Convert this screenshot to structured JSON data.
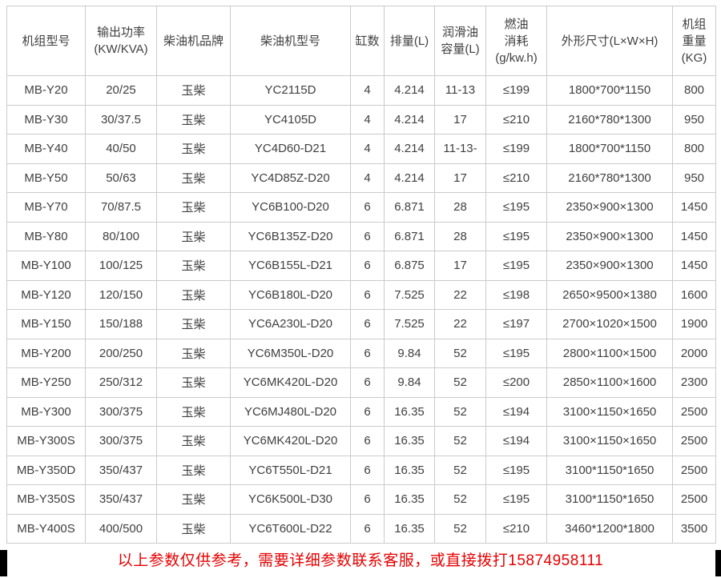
{
  "table": {
    "border_color": "#cbcbcb",
    "text_color": "#404040",
    "column_headers": [
      {
        "key": "model",
        "lines": [
          "机组型号"
        ]
      },
      {
        "key": "power",
        "lines": [
          "输出功率",
          "(KW/KVA)"
        ]
      },
      {
        "key": "brand",
        "lines": [
          "柴油机品牌"
        ]
      },
      {
        "key": "engine",
        "lines": [
          "柴油机型号"
        ]
      },
      {
        "key": "cylinders",
        "lines": [
          "缸数"
        ]
      },
      {
        "key": "displacement",
        "lines": [
          "排量(L)"
        ]
      },
      {
        "key": "lube",
        "lines": [
          "润滑油",
          "容量(L)"
        ]
      },
      {
        "key": "fuel",
        "lines": [
          "燃油",
          "消耗",
          "(g/kw.h)"
        ]
      },
      {
        "key": "dimensions",
        "lines": [
          "外形尺寸(L×W×H)"
        ]
      },
      {
        "key": "weight",
        "lines": [
          "机组",
          "重量",
          "(KG)"
        ]
      }
    ],
    "rows": [
      [
        "MB-Y20",
        "20/25",
        "玉柴",
        "YC2115D",
        "4",
        "4.214",
        "11-13",
        "≤199",
        "1800*700*1150",
        "800"
      ],
      [
        "MB-Y30",
        "30/37.5",
        "玉柴",
        "YC4105D",
        "4",
        "4.214",
        "17",
        "≤210",
        "2160*780*1300",
        "950"
      ],
      [
        "MB-Y40",
        "40/50",
        "玉柴",
        "YC4D60-D21",
        "4",
        "4.214",
        "11-13-",
        "≤199",
        "1800*700*1150",
        "800"
      ],
      [
        "MB-Y50",
        "50/63",
        "玉柴",
        "YC4D85Z-D20",
        "4",
        "4.214",
        "17",
        "≤210",
        "2160*780*1300",
        "950"
      ],
      [
        "MB-Y70",
        "70/87.5",
        "玉柴",
        "YC6B100-D20",
        "6",
        "6.871",
        "28",
        "≤195",
        "2350×900×1300",
        "1450"
      ],
      [
        "MB-Y80",
        "80/100",
        "玉柴",
        "YC6B135Z-D20",
        "6",
        "6.871",
        "28",
        "≤195",
        "2350×900×1300",
        "1450"
      ],
      [
        "MB-Y100",
        "100/125",
        "玉柴",
        "YC6B155L-D21",
        "6",
        "6.875",
        "17",
        "≤195",
        "2350×900×1300",
        "1450"
      ],
      [
        "MB-Y120",
        "120/150",
        "玉柴",
        "YC6B180L-D20",
        "6",
        "7.525",
        "22",
        "≤198",
        "2650×9500×1380",
        "1600"
      ],
      [
        "MB-Y150",
        "150/188",
        "玉柴",
        "YC6A230L-D20",
        "6",
        "7.525",
        "22",
        "≤197",
        "2700×1020×1500",
        "1900"
      ],
      [
        "MB-Y200",
        "200/250",
        "玉柴",
        "YC6M350L-D20",
        "6",
        "9.84",
        "52",
        "≤195",
        "2800×1100×1500",
        "2000"
      ],
      [
        "MB-Y250",
        "250/312",
        "玉柴",
        "YC6MK420L-D20",
        "6",
        "9.84",
        "52",
        "≤200",
        "2850×1100×1600",
        "2300"
      ],
      [
        "MB-Y300",
        "300/375",
        "玉柴",
        "YC6MJ480L-D20",
        "6",
        "16.35",
        "52",
        "≤194",
        "3100×1150×1650",
        "2500"
      ],
      [
        "MB-Y300S",
        "300/375",
        "玉柴",
        "YC6MK420L-D20",
        "6",
        "16.35",
        "52",
        "≤194",
        "3100×1150×1650",
        "2500"
      ],
      [
        "MB-Y350D",
        "350/437",
        "玉柴",
        "YC6T550L-D21",
        "6",
        "16.35",
        "52",
        "≤195",
        "3100*1150*1650",
        "2500"
      ],
      [
        "MB-Y350S",
        "350/437",
        "玉柴",
        "YC6K500L-D30",
        "6",
        "16.35",
        "52",
        "≤195",
        "3100*1150*1650",
        "2500"
      ],
      [
        "MB-Y400S",
        "400/500",
        "玉柴",
        "YC6T600L-D22",
        "6",
        "16.35",
        "52",
        "≤210",
        "3460*1200*1800",
        "3500"
      ]
    ]
  },
  "footer": {
    "text": "以上参数仅供参考，需要详细参数联系客服，或直接拨打15874958111",
    "color": "#e60000"
  }
}
